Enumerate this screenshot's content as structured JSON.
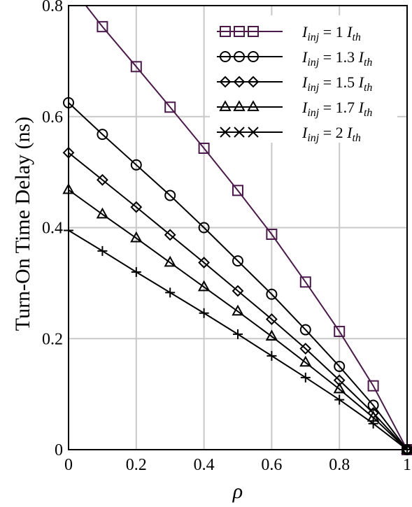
{
  "chart_data": {
    "type": "line",
    "xlabel": "ρ",
    "ylabel": "Turn-On Time Delay (ns)",
    "xlim": [
      0,
      1
    ],
    "ylim": [
      0,
      0.8
    ],
    "x_ticks": [
      "0",
      "0.2",
      "0.4",
      "0.6",
      "0.8",
      "1"
    ],
    "y_ticks": [
      "0",
      "0.2",
      "0.4",
      "0.6",
      "0.8"
    ],
    "x_tick_values": [
      0,
      0.2,
      0.4,
      0.6,
      0.8,
      1
    ],
    "y_tick_values": [
      0,
      0.2,
      0.4,
      0.6,
      0.8
    ],
    "grid": true,
    "legend_position": "top-right",
    "x": [
      0,
      0.1,
      0.2,
      0.3,
      0.4,
      0.5,
      0.6,
      0.7,
      0.8,
      0.9,
      1.0
    ],
    "series": [
      {
        "name": "I_inj = 1 I_th",
        "legend": {
          "base": "I",
          "sub1": "inj",
          "mid": " = 1 ",
          "base2": "I",
          "sub2": "th"
        },
        "marker": "square",
        "color": "#4a1a4a",
        "values": [
          0.84,
          0.762,
          0.69,
          0.617,
          0.543,
          0.467,
          0.388,
          0.302,
          0.213,
          0.115,
          0.0
        ]
      },
      {
        "name": "I_inj = 1.3 I_th",
        "legend": {
          "base": "I",
          "sub1": "inj",
          "mid": " = 1.3 ",
          "base2": "I",
          "sub2": "th"
        },
        "marker": "circle",
        "color": "#000000",
        "values": [
          0.625,
          0.568,
          0.513,
          0.458,
          0.4,
          0.34,
          0.28,
          0.216,
          0.15,
          0.08,
          0.0
        ]
      },
      {
        "name": "I_inj = 1.5 I_th",
        "legend": {
          "base": "I",
          "sub1": "inj",
          "mid": " = 1.5 ",
          "base2": "I",
          "sub2": "th"
        },
        "marker": "diamond",
        "color": "#000000",
        "values": [
          0.535,
          0.486,
          0.437,
          0.387,
          0.337,
          0.286,
          0.235,
          0.182,
          0.125,
          0.066,
          0.0
        ]
      },
      {
        "name": "I_inj = 1.7 I_th",
        "legend": {
          "base": "I",
          "sub1": "inj",
          "mid": " = 1.7 ",
          "base2": "I",
          "sub2": "th"
        },
        "marker": "triangle",
        "color": "#000000",
        "values": [
          0.468,
          0.424,
          0.381,
          0.337,
          0.293,
          0.249,
          0.204,
          0.157,
          0.109,
          0.058,
          0.0
        ]
      },
      {
        "name": "I_inj = 2 I_th",
        "legend": {
          "base": "I",
          "sub1": "inj",
          "mid": " = 2 ",
          "base2": "I",
          "sub2": "th"
        },
        "marker": "plus",
        "color": "#000000",
        "values": [
          0.395,
          0.358,
          0.32,
          0.283,
          0.246,
          0.208,
          0.169,
          0.13,
          0.09,
          0.047,
          0.0
        ]
      }
    ]
  }
}
